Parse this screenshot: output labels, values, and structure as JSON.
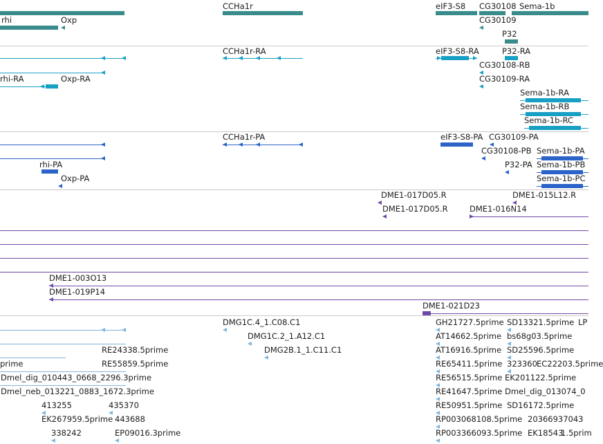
{
  "colors": {
    "gene": "#3a8c8c",
    "transcript": "#18a0c4",
    "protein": "#2b63c9",
    "clone": "#7048a8",
    "est": "#7fb6dc",
    "separator": "#c9c9c9"
  },
  "tracks": {
    "genes": {
      "items": [
        "rhi",
        "Oxp",
        "CCHa1r",
        "eIF3-S8",
        "CG30108",
        "Sema-1b",
        "CG30109",
        "P32"
      ]
    },
    "transcripts": {
      "items": [
        "CCHa1r-RA",
        "eIF3-S8-RA",
        "P32-RA",
        "rhi-RA",
        "Oxp-RA",
        "CG30108-RB",
        "CG30109-RA",
        "Sema-1b-RA",
        "Sema-1b-RB",
        "Sema-1b-RC"
      ]
    },
    "proteins": {
      "items": [
        "CCHa1r-PA",
        "eIF3-S8-PA",
        "CG30109-PA",
        "CG30108-PB",
        "Sema-1b-PA",
        "rhi-PA",
        "P32-PA",
        "Sema-1b-PB",
        "Oxp-PA",
        "Sema-1b-PC"
      ]
    },
    "clones_top": {
      "items": [
        "DME1-017D05.R",
        "DME1-015L12.R",
        "DME1-017D05.R",
        "DME1-016N14"
      ]
    },
    "clones_bottom": {
      "items": [
        "DME1-003O13",
        "DME1-019P14",
        "DME1-021D23"
      ]
    },
    "ests": {
      "items": [
        "DMG1C.4_1.C08.C1",
        "GH21727.5prime",
        "SD13321.5prime",
        "LP",
        "DMG1C.2_1.A12.C1",
        "AT14662.5prime",
        "bs68g03.5prime",
        "RE24338.5prime",
        "DMG2B.1_1.C11.C1",
        "AT16916.5prime",
        "SD25596.5prime",
        "prime",
        "RE55859.5prime",
        "RE65411.5prime",
        "323360",
        "EC22203.5prime",
        "Dmel_dig_010443_0668_2296.3prime",
        "RE56515.5prime",
        "EK201122.5prime",
        "Dmel_neb_013221_0883_1672.3prime",
        "RE41647.5prime",
        "Dmel_dig_013074_0",
        "413255",
        "435370",
        "RE50951.5prime",
        "SD16172.5prime",
        "EK267959.5prime",
        "443688",
        "RP003068108.5prime",
        "20366937043",
        "338242",
        "EP09016.3prime",
        "RP003366093.5prime",
        "EK18543",
        "1.5prim"
      ]
    }
  }
}
